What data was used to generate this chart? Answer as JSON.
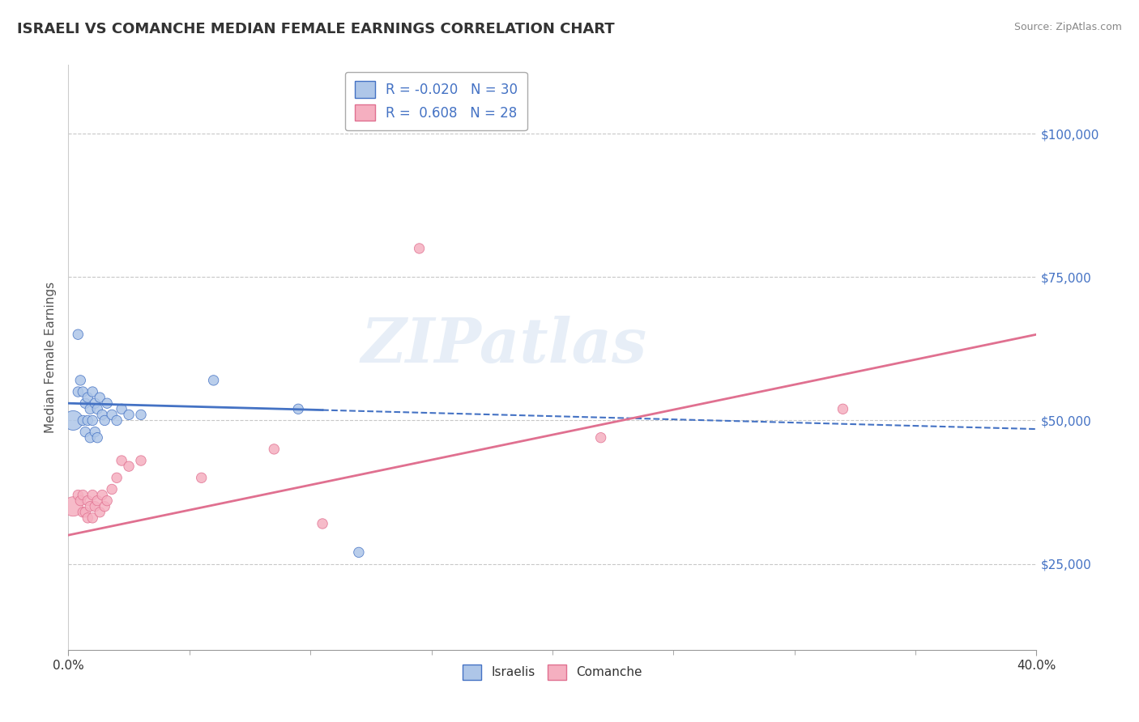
{
  "title": "ISRAELI VS COMANCHE MEDIAN FEMALE EARNINGS CORRELATION CHART",
  "source": "Source: ZipAtlas.com",
  "ylabel": "Median Female Earnings",
  "ytick_labels": [
    "$25,000",
    "$50,000",
    "$75,000",
    "$100,000"
  ],
  "ytick_values": [
    25000,
    50000,
    75000,
    100000
  ],
  "xlim": [
    0.0,
    0.4
  ],
  "ylim": [
    10000,
    112000
  ],
  "israeli_R": -0.02,
  "israeli_N": 30,
  "comanche_R": 0.608,
  "comanche_N": 28,
  "israeli_color": "#aec6e8",
  "comanche_color": "#f5afc0",
  "israeli_line_color": "#4472c4",
  "comanche_line_color": "#e07090",
  "israeli_scatter_x": [
    0.002,
    0.004,
    0.004,
    0.005,
    0.006,
    0.006,
    0.007,
    0.007,
    0.008,
    0.008,
    0.009,
    0.009,
    0.01,
    0.01,
    0.011,
    0.011,
    0.012,
    0.012,
    0.013,
    0.014,
    0.015,
    0.016,
    0.018,
    0.02,
    0.022,
    0.025,
    0.03,
    0.06,
    0.095,
    0.12
  ],
  "israeli_scatter_y": [
    50000,
    65000,
    55000,
    57000,
    55000,
    50000,
    53000,
    48000,
    54000,
    50000,
    52000,
    47000,
    55000,
    50000,
    53000,
    48000,
    52000,
    47000,
    54000,
    51000,
    50000,
    53000,
    51000,
    50000,
    52000,
    51000,
    51000,
    57000,
    52000,
    27000
  ],
  "israeli_scatter_sizes": [
    300,
    80,
    80,
    80,
    80,
    80,
    80,
    80,
    80,
    80,
    80,
    80,
    80,
    80,
    80,
    80,
    80,
    80,
    80,
    80,
    80,
    80,
    80,
    80,
    80,
    80,
    80,
    80,
    80,
    80
  ],
  "comanche_scatter_x": [
    0.002,
    0.004,
    0.005,
    0.006,
    0.006,
    0.007,
    0.008,
    0.008,
    0.009,
    0.01,
    0.01,
    0.011,
    0.012,
    0.013,
    0.014,
    0.015,
    0.016,
    0.018,
    0.02,
    0.022,
    0.025,
    0.03,
    0.055,
    0.085,
    0.105,
    0.145,
    0.22,
    0.32
  ],
  "comanche_scatter_y": [
    35000,
    37000,
    36000,
    34000,
    37000,
    34000,
    36000,
    33000,
    35000,
    37000,
    33000,
    35000,
    36000,
    34000,
    37000,
    35000,
    36000,
    38000,
    40000,
    43000,
    42000,
    43000,
    40000,
    45000,
    32000,
    80000,
    47000,
    52000
  ],
  "comanche_scatter_sizes": [
    300,
    80,
    80,
    80,
    80,
    80,
    80,
    80,
    80,
    80,
    80,
    80,
    80,
    80,
    80,
    80,
    80,
    80,
    80,
    80,
    80,
    80,
    80,
    80,
    80,
    80,
    80,
    80
  ],
  "israeli_line_x0": 0.0,
  "israeli_line_y0": 53000,
  "israeli_line_x1": 0.4,
  "israeli_line_y1": 48500,
  "israeli_line_solid_end": 0.105,
  "comanche_line_x0": 0.0,
  "comanche_line_y0": 30000,
  "comanche_line_x1": 0.4,
  "comanche_line_y1": 65000,
  "watermark": "ZIPatlas",
  "background_color": "#ffffff",
  "grid_color": "#c8c8c8"
}
